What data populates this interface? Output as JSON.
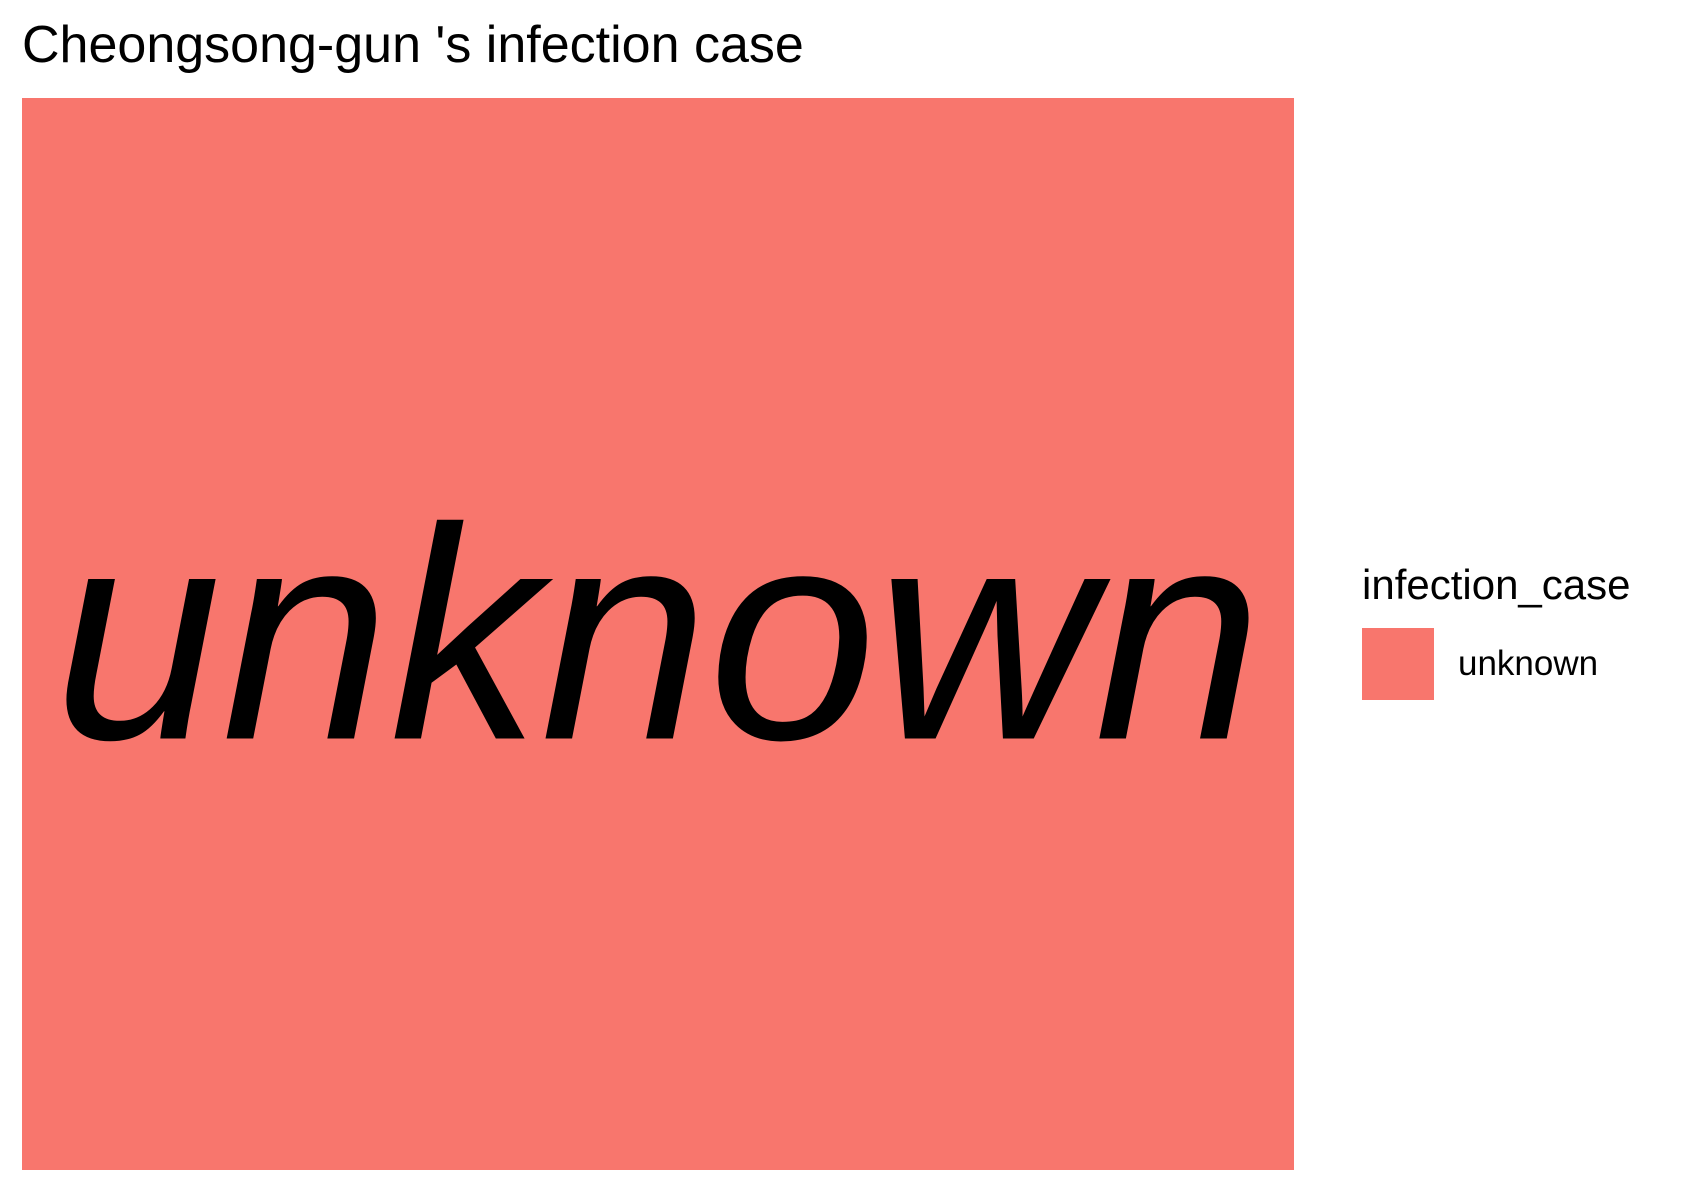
{
  "chart_data": {
    "type": "treemap",
    "title": "Cheongsong-gun 's infection case",
    "legend_title": "infection_case",
    "legend_position": "right",
    "categories": [
      "unknown"
    ],
    "values": [
      1
    ],
    "colors": [
      "#F8766D"
    ],
    "label_color": "#000000"
  }
}
